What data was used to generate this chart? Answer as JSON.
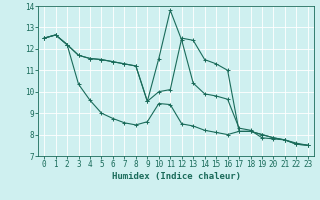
{
  "xlabel": "Humidex (Indice chaleur)",
  "bg_color": "#cff0f0",
  "grid_color": "#ffffff",
  "line_color": "#1a6b5a",
  "xlim": [
    -0.5,
    23.5
  ],
  "ylim": [
    7,
    14
  ],
  "xticks": [
    0,
    1,
    2,
    3,
    4,
    5,
    6,
    7,
    8,
    9,
    10,
    11,
    12,
    13,
    14,
    15,
    16,
    17,
    18,
    19,
    20,
    21,
    22,
    23
  ],
  "yticks": [
    7,
    8,
    9,
    10,
    11,
    12,
    13,
    14
  ],
  "series": [
    [
      12.5,
      12.65,
      12.2,
      11.7,
      11.55,
      11.5,
      11.4,
      11.3,
      11.2,
      9.55,
      10.0,
      10.1,
      12.5,
      12.4,
      11.5,
      11.3,
      11.0,
      8.15,
      8.15,
      8.0,
      7.85,
      7.75,
      7.55,
      7.5
    ],
    [
      12.5,
      12.65,
      12.2,
      11.7,
      11.55,
      11.5,
      11.4,
      11.3,
      11.2,
      9.55,
      11.55,
      13.8,
      12.4,
      10.4,
      9.9,
      9.8,
      9.65,
      8.3,
      8.2,
      7.85,
      7.8,
      7.75,
      7.6,
      7.5
    ],
    [
      12.5,
      12.65,
      12.2,
      10.35,
      9.6,
      9.0,
      8.75,
      8.55,
      8.45,
      8.6,
      9.45,
      9.4,
      8.5,
      8.4,
      8.2,
      8.1,
      8.0,
      8.15,
      8.15,
      8.0,
      7.85,
      7.75,
      7.55,
      7.5
    ]
  ],
  "tick_fontsize": 5.5,
  "xlabel_fontsize": 6.5,
  "marker_size": 3,
  "linewidth": 0.8
}
